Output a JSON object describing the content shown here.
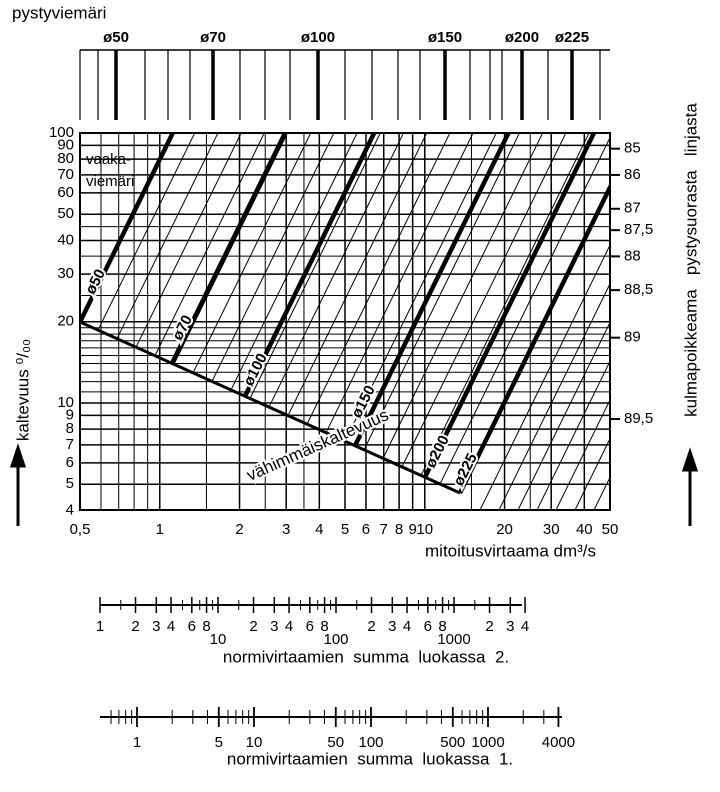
{
  "top_scale": {
    "title": "pystyviemäri",
    "labels": [
      "ø50",
      "ø70",
      "ø100",
      "ø150",
      "ø200",
      "ø225"
    ]
  },
  "chart": {
    "y_label": "kaltevuus ⁰/₀₀",
    "y_ticks": [
      100,
      90,
      80,
      70,
      60,
      50,
      40,
      30,
      20,
      10,
      9,
      8,
      7,
      6,
      5,
      4
    ],
    "x_ticks": [
      {
        "value": 0.5,
        "label": "0,5"
      },
      1,
      2,
      3,
      4,
      5,
      6,
      7,
      8,
      9,
      10,
      20,
      30,
      40,
      50
    ],
    "x_label": "mitoitusvirtaama dm³/s",
    "right_label": "kulmapoikkeama   pystysuorasta   linjasta",
    "right_ticks": [
      85,
      86,
      87,
      {
        "value": 87.5,
        "label": "87,5"
      },
      88,
      {
        "value": 88.5,
        "label": "88,5"
      },
      89,
      {
        "value": 89.5,
        "label": "89,5"
      }
    ],
    "horizontal_label": [
      "vaaka-",
      "viemäri"
    ],
    "minimum_label": "vähimmäiskaltevuus",
    "pipe_labels": [
      "ø50",
      "ø70",
      "ø100",
      "ø150",
      "ø200",
      "ø225"
    ]
  },
  "scale_2": {
    "label": "normivirtaamien  summa  luokassa  2.",
    "ticks": [
      1,
      2,
      3,
      4,
      6,
      8,
      10,
      {
        "value": 20,
        "label": "2"
      },
      {
        "value": 30,
        "label": "3"
      },
      {
        "value": 40,
        "label": "4"
      },
      {
        "value": 60,
        "label": "6"
      },
      {
        "value": 80,
        "label": "8"
      },
      100,
      {
        "value": 200,
        "label": "2"
      },
      {
        "value": 300,
        "label": "3"
      },
      {
        "value": 400,
        "label": "4"
      },
      {
        "value": 600,
        "label": "6"
      },
      {
        "value": 800,
        "label": "8"
      },
      1000,
      {
        "value": 2000,
        "label": "2"
      },
      {
        "value": 3000,
        "label": "3"
      },
      {
        "value": 4000,
        "label": "4"
      }
    ]
  },
  "scale_1": {
    "label": "normivirtaamien  summa  luokassa  1.",
    "ticks": [
      1,
      5,
      10,
      50,
      100,
      500,
      1000,
      4000
    ]
  }
}
